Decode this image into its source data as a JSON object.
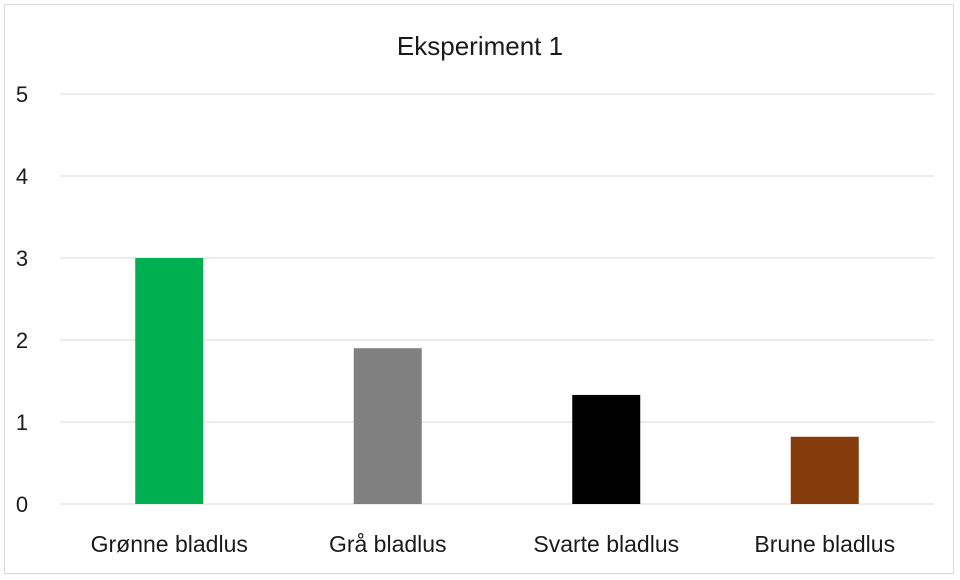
{
  "chart_data": {
    "type": "bar",
    "title": "Eksperiment 1",
    "xlabel": "",
    "ylabel": "",
    "categories": [
      "Grønne bladlus",
      "Grå bladlus",
      "Svarte bladlus",
      "Brune bladlus"
    ],
    "values": [
      3.0,
      1.9,
      1.33,
      0.82
    ],
    "colors": [
      "#00b050",
      "#808080",
      "#000000",
      "#843c0c"
    ],
    "ylim": [
      0,
      5
    ],
    "yticks": [
      "0",
      "1",
      "2",
      "3",
      "4",
      "5"
    ],
    "grid": true,
    "legend": "none"
  }
}
